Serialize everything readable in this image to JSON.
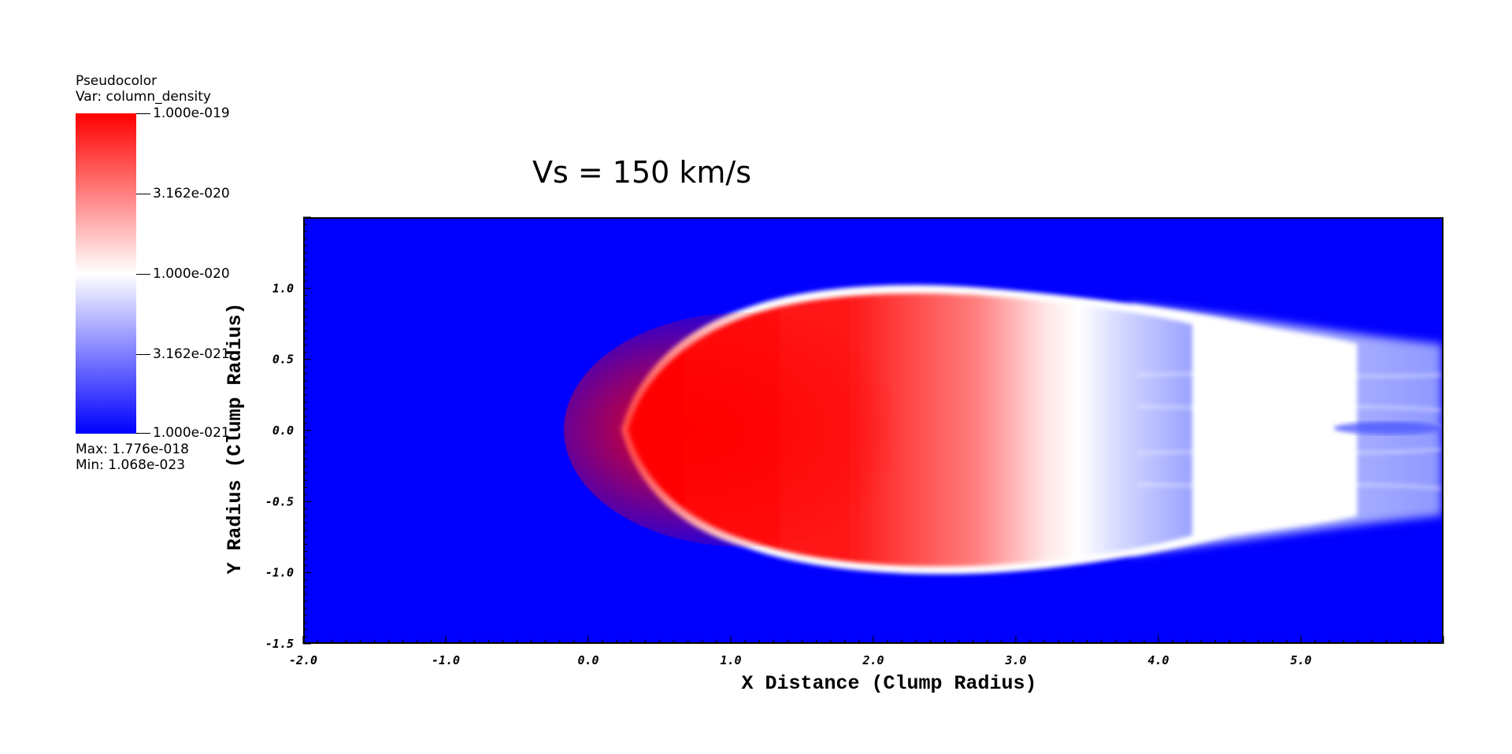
{
  "legend": {
    "title_line1": "Pseudocolor",
    "title_line2": "Var: column_density",
    "colorbar_labels": [
      "1.000e-019",
      "3.162e-020",
      "1.000e-020",
      "3.162e-021",
      "1.000e-021"
    ],
    "max_text": "Max:  1.776e-018",
    "min_text": "Min:  1.068e-023",
    "colors": {
      "high": "#ff0000",
      "mid": "#ffffff",
      "low": "#0000ff"
    }
  },
  "chart_data": {
    "type": "heatmap",
    "title": "Vs = 150 km/s",
    "xlabel": "X Distance (Clump Radius)",
    "ylabel": "Y Radius (Clump Radius)",
    "xlim": [
      -2.0,
      6.0
    ],
    "ylim": [
      -1.5,
      1.5
    ],
    "x_ticks": [
      -2.0,
      -1.0,
      0.0,
      1.0,
      2.0,
      3.0,
      4.0,
      5.0
    ],
    "x_tick_labels": [
      "-2.0",
      "-1.0",
      "0.0",
      "1.0",
      "2.0",
      "3.0",
      "4.0",
      "5.0"
    ],
    "y_ticks": [
      -1.5,
      -1.0,
      -0.5,
      0.0,
      0.5,
      1.0
    ],
    "y_tick_labels": [
      "-1.5",
      "-1.0",
      "-0.5",
      "0.0",
      "0.5",
      "1.0"
    ],
    "variable": "column_density",
    "colorscale": [
      "#0000ff",
      "#ffffff",
      "#ff0000"
    ],
    "color_range": [
      1e-21,
      1e-19
    ],
    "log_scale": true,
    "max": 1.776e-18,
    "min": 1.068e-23,
    "features": {
      "clump_front_x": 0.22,
      "clump_extent_y": [
        -1.03,
        1.03
      ],
      "dense_core_x_range": [
        0.3,
        2.0
      ],
      "tail_end_x": 6.0
    }
  }
}
